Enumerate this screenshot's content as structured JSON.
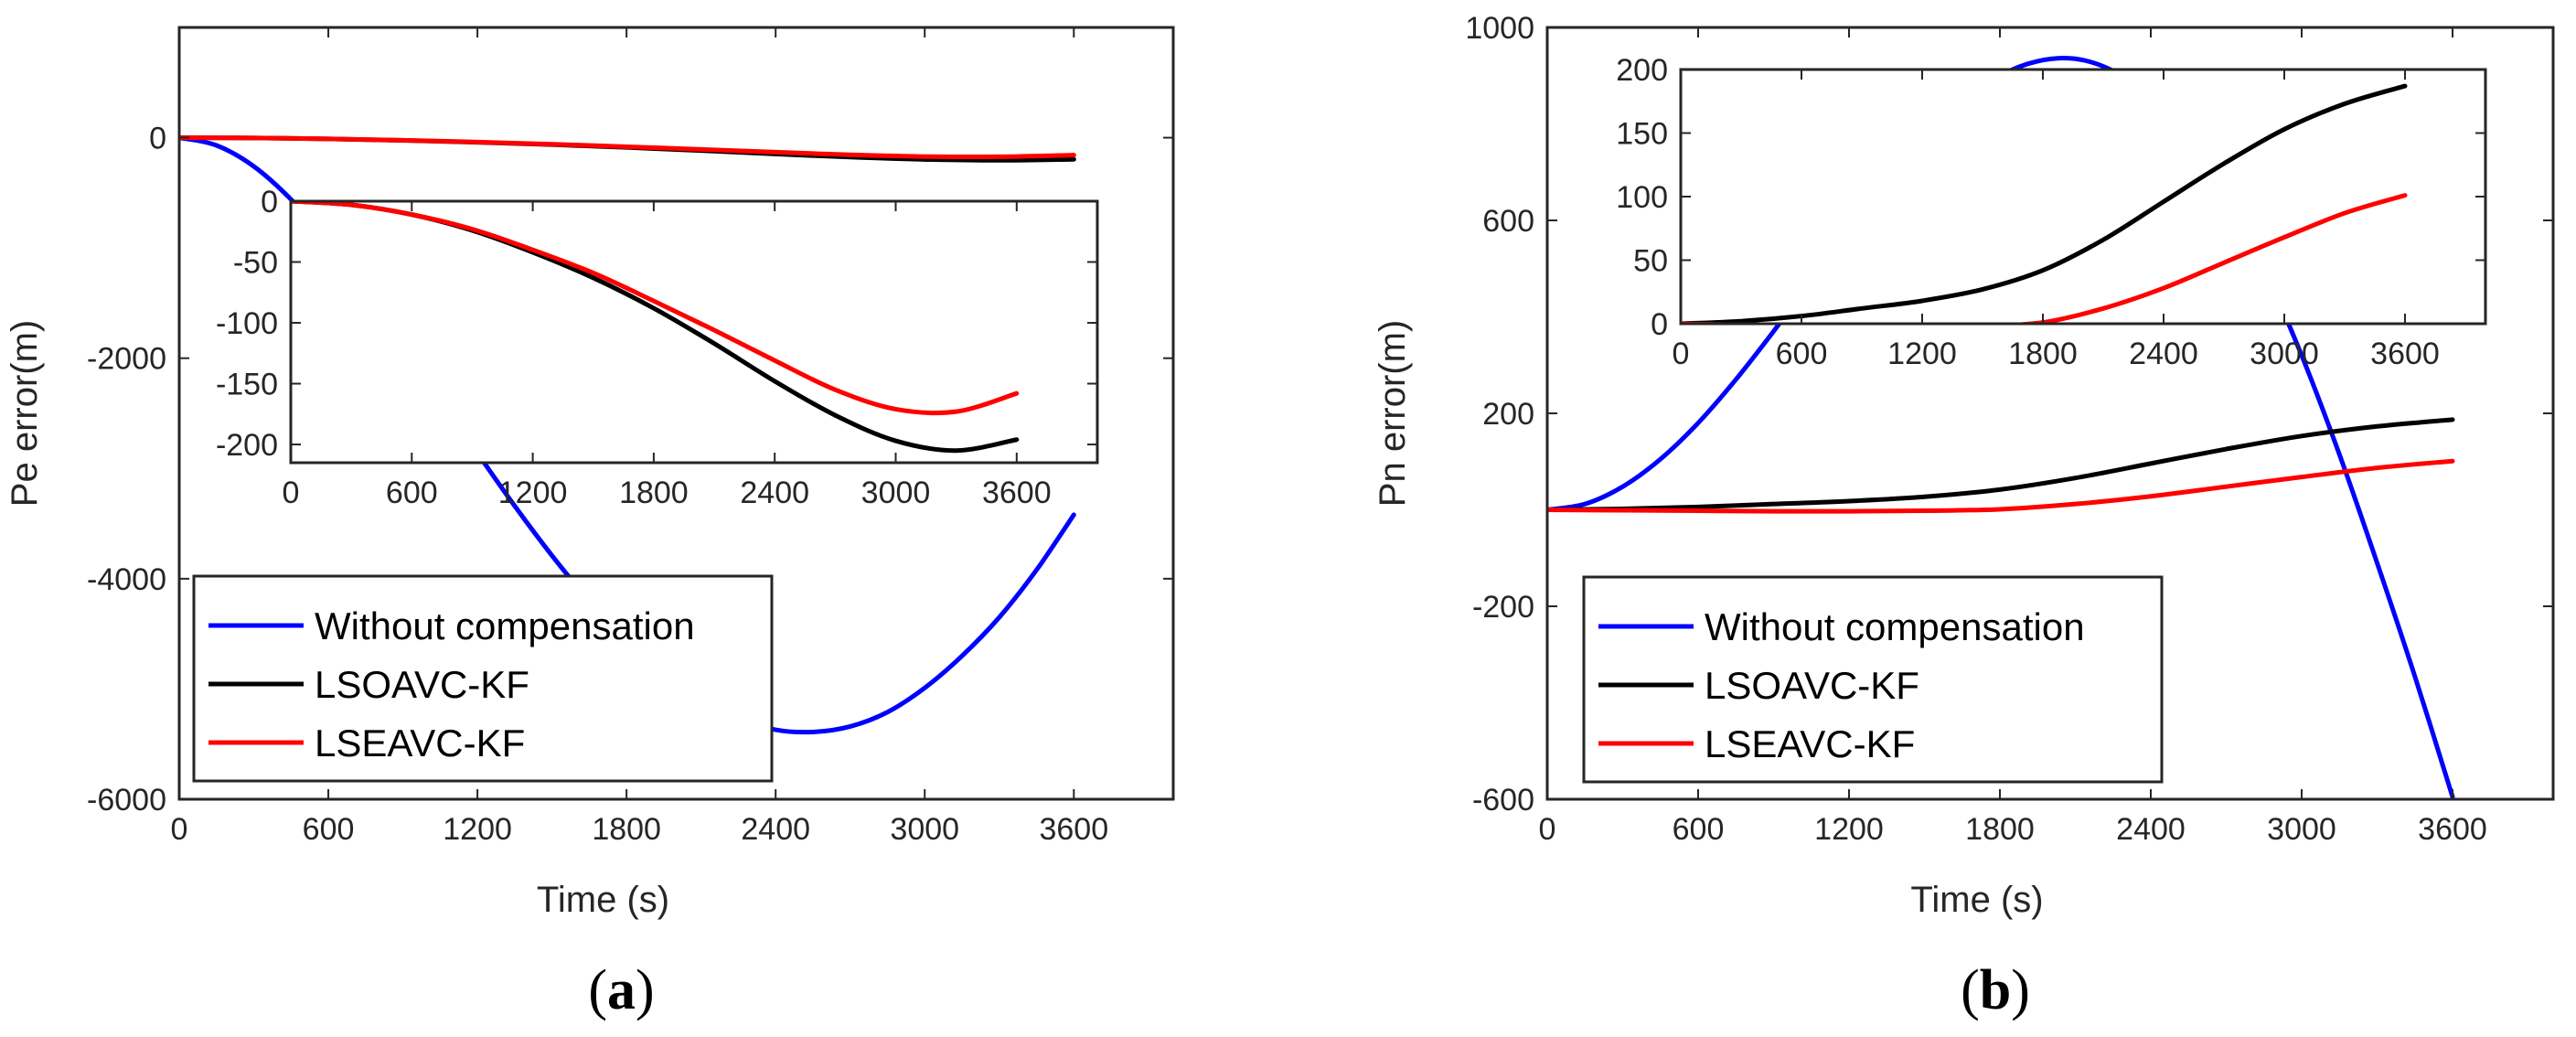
{
  "chart_data": [
    {
      "type": "line",
      "panel_label": "(a)",
      "panel_letter": "a",
      "xlabel": "Time (s)",
      "ylabel": "Pe error(m)",
      "xlim": [
        0,
        4000
      ],
      "ylim": [
        -6000,
        1000
      ],
      "xticks": [
        0,
        600,
        1200,
        1800,
        2400,
        3000,
        3600
      ],
      "yticks": [
        -6000,
        -4000,
        -2000,
        0
      ],
      "legend": {
        "location": "bottom-left",
        "entries": [
          "Without compensation",
          "LSOAVC-KF",
          "LSEAVC-KF"
        ]
      },
      "series": [
        {
          "name": "Without compensation",
          "color": "#0000ff",
          "x": [
            0,
            150,
            300,
            450,
            600,
            750,
            900,
            1050,
            1200,
            1350,
            1500,
            1650,
            1800,
            1950,
            2100,
            2250,
            2400,
            2550,
            2700,
            2850,
            3000,
            3150,
            3300,
            3450,
            3600
          ],
          "y": [
            0,
            -70,
            -260,
            -560,
            -940,
            -1380,
            -1860,
            -2360,
            -2860,
            -3340,
            -3790,
            -4200,
            -4560,
            -4860,
            -5100,
            -5270,
            -5370,
            -5390,
            -5340,
            -5210,
            -4990,
            -4700,
            -4350,
            -3920,
            -3420
          ]
        },
        {
          "name": "LSOAVC-KF",
          "color": "#000000",
          "x": [
            0,
            300,
            600,
            900,
            1200,
            1500,
            1800,
            2100,
            2400,
            2700,
            3000,
            3300,
            3600
          ],
          "y": [
            0,
            -3,
            -11,
            -24,
            -42,
            -63,
            -88,
            -117,
            -148,
            -176,
            -197,
            -205,
            -196
          ]
        },
        {
          "name": "LSEAVC-KF",
          "color": "#ff0000",
          "x": [
            0,
            300,
            600,
            900,
            1200,
            1500,
            1800,
            2100,
            2400,
            2700,
            3000,
            3300,
            3600
          ],
          "y": [
            0,
            -3,
            -11,
            -23,
            -40,
            -59,
            -82,
            -106,
            -131,
            -155,
            -171,
            -173,
            -158
          ]
        }
      ],
      "inset": {
        "xlim": [
          0,
          4000
        ],
        "ylim": [
          -215,
          0
        ],
        "xticks": [
          0,
          600,
          1200,
          1800,
          2400,
          3000,
          3600
        ],
        "yticks": [
          -200,
          -150,
          -100,
          -50,
          0
        ],
        "series_names": [
          "LSOAVC-KF",
          "LSEAVC-KF"
        ]
      }
    },
    {
      "type": "line",
      "panel_label": "(b)",
      "panel_letter": "b",
      "xlabel": "Time (s)",
      "ylabel": "Pn error(m)",
      "xlim": [
        0,
        4000
      ],
      "ylim": [
        -600,
        1000
      ],
      "xticks": [
        0,
        600,
        1200,
        1800,
        2400,
        3000,
        3600
      ],
      "yticks": [
        -600,
        -200,
        200,
        600,
        1000
      ],
      "legend": {
        "location": "bottom-left",
        "entries": [
          "Without compensation",
          "LSOAVC-KF",
          "LSEAVC-KF"
        ]
      },
      "series": [
        {
          "name": "Without compensation",
          "color": "#0000ff",
          "x": [
            0,
            150,
            300,
            450,
            600,
            750,
            900,
            1050,
            1200,
            1350,
            1500,
            1650,
            1800,
            1950,
            2100,
            2250,
            2400,
            2550,
            2700,
            2850,
            3000,
            3150,
            3300,
            3450,
            3600
          ],
          "y": [
            0,
            12,
            48,
            105,
            180,
            270,
            370,
            475,
            580,
            680,
            770,
            845,
            900,
            930,
            935,
            910,
            855,
            770,
            650,
            500,
            320,
            115,
            -110,
            -345,
            -595
          ]
        },
        {
          "name": "LSOAVC-KF",
          "color": "#000000",
          "x": [
            0,
            300,
            600,
            900,
            1200,
            1500,
            1800,
            2100,
            2400,
            2700,
            3000,
            3300,
            3600
          ],
          "y": [
            0,
            2,
            6,
            12,
            18,
            27,
            42,
            66,
            96,
            126,
            153,
            173,
            187
          ]
        },
        {
          "name": "LSEAVC-KF",
          "color": "#ff0000",
          "x": [
            0,
            300,
            600,
            900,
            1200,
            1500,
            1800,
            2100,
            2400,
            2700,
            3000,
            3300,
            3600
          ],
          "y": [
            0,
            -1,
            -2,
            -3,
            -3,
            -2,
            1,
            12,
            28,
            48,
            68,
            87,
            101
          ]
        }
      ],
      "inset": {
        "xlim": [
          0,
          4000
        ],
        "ylim": [
          0,
          200
        ],
        "xticks": [
          0,
          600,
          1200,
          1800,
          2400,
          3000,
          3600
        ],
        "yticks": [
          0,
          50,
          100,
          150,
          200
        ],
        "series_names": [
          "LSOAVC-KF",
          "LSEAVC-KF"
        ]
      }
    }
  ]
}
